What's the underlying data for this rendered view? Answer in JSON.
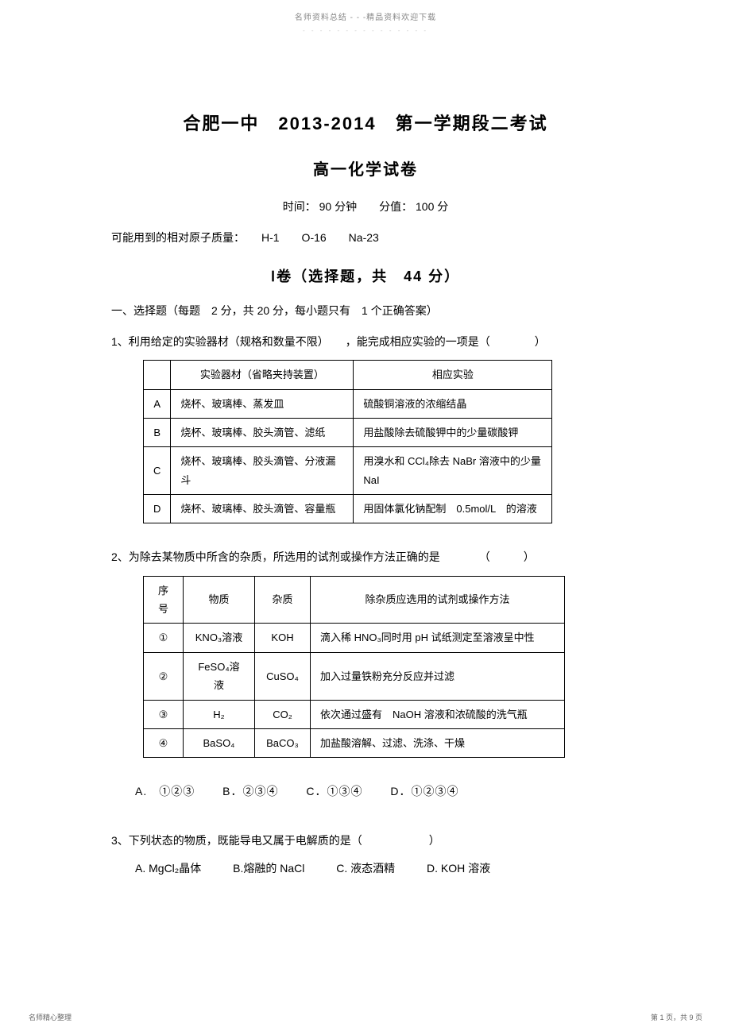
{
  "header": {
    "text": "名师资料总结 - - -精品资料欢迎下载",
    "dots": "- - - - - - - - - - - - - - -"
  },
  "title1": "合肥一中　2013-2014　第一学期段二考试",
  "title2": "高一化学试卷",
  "meta": "时间： 90 分钟　　分值： 100 分",
  "note": "可能用到的相对原子质量：　　H-1　　O-16　　Na-23",
  "section": "Ⅰ卷（选择题，共　44 分）",
  "instruction": "一、选择题（每题　2 分，共 20 分，每小题只有　1 个正确答案）",
  "q1": {
    "stem": "1、利用给定的实验器材（规格和数量不限）　　，能完成相应实验的一项是（　　　　）",
    "headers": [
      "",
      "实验器材（省略夹持装置）",
      "相应实验"
    ],
    "rows": [
      [
        "A",
        "烧杯、玻璃棒、蒸发皿",
        "硫酸铜溶液的浓缩结晶"
      ],
      [
        "B",
        "烧杯、玻璃棒、胶头滴管、滤纸",
        "用盐酸除去硫酸钾中的少量碳酸钾"
      ],
      [
        "C",
        "烧杯、玻璃棒、胶头滴管、分液漏斗",
        "用溴水和 CCl₄除去 NaBr 溶液中的少量 NaI"
      ],
      [
        "D",
        "烧杯、玻璃棒、胶头滴管、容量瓶",
        "用固体氯化钠配制　0.5mol/L　的溶液"
      ]
    ]
  },
  "q2": {
    "stem": "2、为除去某物质中所含的杂质，所选用的试剂或操作方法正确的是　　　　（　　　）",
    "headers": [
      "序号",
      "物质",
      "杂质",
      "除杂质应选用的试剂或操作方法"
    ],
    "rows": [
      [
        "①",
        "KNO₃溶液",
        "KOH",
        "滴入稀 HNO₃同时用 pH 试纸测定至溶液呈中性"
      ],
      [
        "②",
        "FeSO₄溶液",
        "CuSO₄",
        "加入过量铁粉充分反应并过滤"
      ],
      [
        "③",
        "H₂",
        "CO₂",
        "依次通过盛有　NaOH 溶液和浓硫酸的洗气瓶"
      ],
      [
        "④",
        "BaSO₄",
        "BaCO₃",
        "加盐酸溶解、过滤、洗涤、干燥"
      ]
    ],
    "options": {
      "a": "A.　①②③",
      "b": "B．②③④",
      "c": "C．①③④",
      "d": "D．①②③④"
    }
  },
  "q3": {
    "stem": "3、下列状态的物质，既能导电又属于电解质的是（　　　　　　）",
    "options": {
      "a": "A. MgCl₂晶体",
      "b": "B.熔融的 NaCl",
      "c": "C. 液态酒精",
      "d": "D. KOH 溶液"
    }
  },
  "footer": {
    "left": "名师精心整理",
    "right": "第 1 页，共 9 页"
  }
}
